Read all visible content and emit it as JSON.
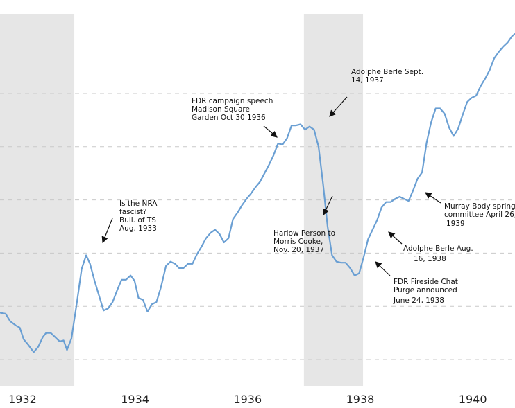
{
  "chart_data": {
    "type": "line",
    "title": "",
    "xlabel": "",
    "ylabel": "",
    "xlim": [
      1931.6,
      1940.75
    ],
    "ylim": [
      5,
      35
    ],
    "grid": "horizontal dashed",
    "gridlines": [
      5,
      10,
      15,
      20,
      25,
      30
    ],
    "x_ticks": [
      {
        "value": 1932,
        "label": "1932"
      },
      {
        "value": 1934,
        "label": "1934"
      },
      {
        "value": 1936,
        "label": "1936"
      },
      {
        "value": 1938,
        "label": "1938"
      },
      {
        "value": 1940,
        "label": "1940"
      }
    ],
    "shaded_periods": [
      {
        "name": "recession-1929-1933",
        "start": 1931.6,
        "end": 1932.92
      },
      {
        "name": "recession-1937-1938",
        "start": 1937.0,
        "end": 1938.05
      }
    ],
    "series": [
      {
        "name": "index",
        "color": "#6a9fd3",
        "points": [
          [
            1931.6,
            9.4
          ],
          [
            1931.7,
            9.3
          ],
          [
            1931.78,
            8.6
          ],
          [
            1931.88,
            8.2
          ],
          [
            1931.95,
            8.0
          ],
          [
            1932.02,
            6.9
          ],
          [
            1932.1,
            6.4
          ],
          [
            1932.17,
            5.9
          ],
          [
            1932.2,
            5.7
          ],
          [
            1932.28,
            6.2
          ],
          [
            1932.36,
            7.1
          ],
          [
            1932.42,
            7.5
          ],
          [
            1932.5,
            7.5
          ],
          [
            1932.58,
            7.1
          ],
          [
            1932.66,
            6.7
          ],
          [
            1932.73,
            6.8
          ],
          [
            1932.79,
            5.9
          ],
          [
            1932.87,
            7.0
          ],
          [
            1932.97,
            10.5
          ],
          [
            1933.05,
            13.5
          ],
          [
            1933.13,
            14.8
          ],
          [
            1933.2,
            14.0
          ],
          [
            1933.28,
            12.4
          ],
          [
            1933.36,
            11.0
          ],
          [
            1933.44,
            9.6
          ],
          [
            1933.52,
            9.8
          ],
          [
            1933.6,
            10.4
          ],
          [
            1933.68,
            11.5
          ],
          [
            1933.76,
            12.5
          ],
          [
            1933.84,
            12.5
          ],
          [
            1933.92,
            12.9
          ],
          [
            1933.99,
            12.4
          ],
          [
            1934.06,
            10.8
          ],
          [
            1934.14,
            10.6
          ],
          [
            1934.22,
            9.5
          ],
          [
            1934.3,
            10.2
          ],
          [
            1934.38,
            10.4
          ],
          [
            1934.46,
            11.8
          ],
          [
            1934.55,
            13.8
          ],
          [
            1934.63,
            14.2
          ],
          [
            1934.71,
            14.0
          ],
          [
            1934.78,
            13.6
          ],
          [
            1934.86,
            13.6
          ],
          [
            1934.94,
            14.0
          ],
          [
            1935.02,
            14.0
          ],
          [
            1935.1,
            14.9
          ],
          [
            1935.18,
            15.6
          ],
          [
            1935.26,
            16.4
          ],
          [
            1935.34,
            16.9
          ],
          [
            1935.42,
            17.2
          ],
          [
            1935.5,
            16.8
          ],
          [
            1935.58,
            16.0
          ],
          [
            1935.66,
            16.4
          ],
          [
            1935.74,
            18.2
          ],
          [
            1935.82,
            18.8
          ],
          [
            1935.9,
            19.5
          ],
          [
            1935.98,
            20.1
          ],
          [
            1936.06,
            20.6
          ],
          [
            1936.14,
            21.2
          ],
          [
            1936.22,
            21.7
          ],
          [
            1936.3,
            22.5
          ],
          [
            1936.38,
            23.3
          ],
          [
            1936.46,
            24.2
          ],
          [
            1936.54,
            25.3
          ],
          [
            1936.62,
            25.2
          ],
          [
            1936.7,
            25.8
          ],
          [
            1936.78,
            27.0
          ],
          [
            1936.86,
            27.0
          ],
          [
            1936.94,
            27.1
          ],
          [
            1937.02,
            26.6
          ],
          [
            1937.1,
            26.9
          ],
          [
            1937.18,
            26.6
          ],
          [
            1937.26,
            25.0
          ],
          [
            1937.34,
            21.5
          ],
          [
            1937.42,
            17.5
          ],
          [
            1937.5,
            14.8
          ],
          [
            1937.58,
            14.2
          ],
          [
            1937.66,
            14.1
          ],
          [
            1937.74,
            14.1
          ],
          [
            1937.82,
            13.6
          ],
          [
            1937.9,
            12.9
          ],
          [
            1937.98,
            13.1
          ],
          [
            1938.06,
            14.6
          ],
          [
            1938.14,
            16.3
          ],
          [
            1938.22,
            17.2
          ],
          [
            1938.3,
            18.1
          ],
          [
            1938.38,
            19.3
          ],
          [
            1938.46,
            19.8
          ],
          [
            1938.54,
            19.8
          ],
          [
            1938.62,
            20.1
          ],
          [
            1938.7,
            20.3
          ],
          [
            1938.78,
            20.1
          ],
          [
            1938.86,
            19.9
          ],
          [
            1938.94,
            20.9
          ],
          [
            1939.02,
            22.0
          ],
          [
            1939.1,
            22.6
          ],
          [
            1939.18,
            25.4
          ],
          [
            1939.26,
            27.3
          ],
          [
            1939.34,
            28.6
          ],
          [
            1939.42,
            28.6
          ],
          [
            1939.5,
            28.1
          ],
          [
            1939.58,
            26.8
          ],
          [
            1939.66,
            26.0
          ],
          [
            1939.74,
            26.7
          ],
          [
            1939.82,
            28.0
          ],
          [
            1939.9,
            29.2
          ],
          [
            1939.98,
            29.6
          ],
          [
            1940.06,
            29.8
          ],
          [
            1940.14,
            30.7
          ],
          [
            1940.22,
            31.4
          ],
          [
            1940.3,
            32.2
          ],
          [
            1940.38,
            33.3
          ],
          [
            1940.46,
            33.9
          ],
          [
            1940.54,
            34.4
          ],
          [
            1940.62,
            34.8
          ],
          [
            1940.7,
            35.4
          ],
          [
            1940.75,
            35.6
          ]
        ]
      }
    ],
    "annotations": [
      {
        "name": "nra-fascist",
        "lines": [
          "Is the NRA",
          "fascist?",
          "Bull. of TS",
          "Aug. 1933"
        ],
        "x": 1933.13,
        "y": 14.8
      },
      {
        "name": "fdr-campaign-speech",
        "lines": [
          "FDR campaign speech",
          "Madison Square",
          "Garden Oct 30 1936"
        ],
        "x": 1936.82,
        "y": 25.3
      },
      {
        "name": "berle-sept-1937",
        "lines": [
          "Adolphe Berle Sept.",
          "14, 1937"
        ],
        "x": 1937.26,
        "y": 26.6
      },
      {
        "name": "harlow-person",
        "lines": [
          "Harlow Person to",
          "Morris Cooke,",
          "Nov. 20, 1937"
        ],
        "x": 1937.38,
        "y": 19.2
      },
      {
        "name": "fdr-fireside-chat",
        "lines": [
          "FDR Fireside Chat",
          "Purge announced",
          "June 24, 1938"
        ],
        "x": 1938.05,
        "y": 13.1
      },
      {
        "name": "berle-aug-1938",
        "lines": [
          "Adolphe Berle Aug.",
          "16, 1938"
        ],
        "x": 1938.5,
        "y": 15.2
      },
      {
        "name": "murray-body-spring",
        "lines": [
          "Murray Body spring",
          "committee April 26,",
          "1939"
        ],
        "x": 1939.28,
        "y": 20.7
      }
    ]
  }
}
